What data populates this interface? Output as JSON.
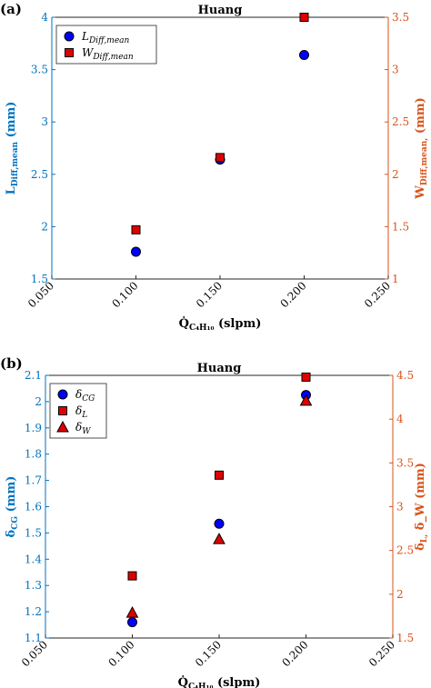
{
  "colors": {
    "left_axis": "#0072BD",
    "right_axis": "#D95319",
    "marker_blue": "#0000FF",
    "marker_red": "#E00000",
    "marker_edge": "#000000"
  },
  "chart_data": [
    {
      "panel": "(a)",
      "type": "scatter",
      "title": "Huang",
      "xlabel_base": "Q̇",
      "xlabel_sub": "C₄H₁₀",
      "xlabel_unit": " (slpm)",
      "ylabel_left": "L_Diff,mean (mm)",
      "ylabel_right": "W_Diff,mean, (mm)",
      "xlim": [
        0.05,
        0.25
      ],
      "ylim_left": [
        1.5,
        4
      ],
      "ylim_right": [
        1,
        3.5
      ],
      "x_ticks": [
        "0.050",
        "0.100",
        "0.150",
        "0.200",
        "0.250"
      ],
      "y_ticks_left": [
        "1.5",
        "2",
        "2.5",
        "3",
        "3.5",
        "4"
      ],
      "y_ticks_right": [
        "1",
        "1.5",
        "2",
        "2.5",
        "3",
        "3.5"
      ],
      "legend_position": "top-left",
      "series": [
        {
          "name": "L_Diff,mean",
          "axis": "left",
          "marker": "circle",
          "color": "#0000FF",
          "x": [
            0.1,
            0.15,
            0.2
          ],
          "y": [
            1.76,
            2.64,
            3.64
          ]
        },
        {
          "name": "W_Diff,mean",
          "axis": "right",
          "marker": "square",
          "color": "#E00000",
          "x": [
            0.1,
            0.15,
            0.2
          ],
          "y": [
            1.47,
            2.16,
            3.5
          ]
        }
      ],
      "legend_html": [
        "L<tspan font-size='9' dy='3'>Diff,mean</tspan>",
        "W<tspan font-size='9' dy='3'>Diff,mean</tspan>"
      ]
    },
    {
      "panel": "(b)",
      "type": "scatter",
      "title": "Huang",
      "xlabel_base": "Q̇",
      "xlabel_sub": "C₄H₁₀",
      "xlabel_unit": " (slpm)",
      "ylabel_left": "δ_CG (mm)",
      "ylabel_right": "δ_L, δ_W (mm)",
      "xlim": [
        0.05,
        0.25
      ],
      "ylim_left": [
        1.1,
        2.1
      ],
      "ylim_right": [
        1.5,
        4.5
      ],
      "x_ticks": [
        "0.050",
        "0.100",
        "0.150",
        "0.200",
        "0.250"
      ],
      "y_ticks_left": [
        "1.1",
        "1.2",
        "1.3",
        "1.4",
        "1.5",
        "1.6",
        "1.7",
        "1.8",
        "1.9",
        "2",
        "2.1"
      ],
      "y_ticks_right": [
        "1.5",
        "2",
        "2.5",
        "3",
        "3.5",
        "4",
        "4.5"
      ],
      "legend_position": "top-left",
      "series": [
        {
          "name": "δ_CG",
          "axis": "left",
          "marker": "circle",
          "color": "#0000FF",
          "x": [
            0.1,
            0.15,
            0.2
          ],
          "y": [
            1.16,
            1.535,
            2.025
          ]
        },
        {
          "name": "δ_L",
          "axis": "right",
          "marker": "square",
          "color": "#E00000",
          "x": [
            0.1,
            0.15,
            0.2
          ],
          "y": [
            2.21,
            3.36,
            4.48
          ]
        },
        {
          "name": "δ_W",
          "axis": "right",
          "marker": "triangle",
          "color": "#E00000",
          "x": [
            0.1,
            0.15,
            0.2
          ],
          "y": [
            1.79,
            2.63,
            4.21
          ]
        }
      ]
    }
  ]
}
